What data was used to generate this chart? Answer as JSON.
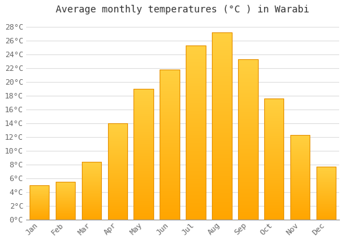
{
  "title": "Average monthly temperatures (°C ) in Warabi",
  "months": [
    "Jan",
    "Feb",
    "Mar",
    "Apr",
    "May",
    "Jun",
    "Jul",
    "Aug",
    "Sep",
    "Oct",
    "Nov",
    "Dec"
  ],
  "values": [
    5.0,
    5.5,
    8.4,
    14.0,
    19.0,
    21.8,
    25.3,
    27.2,
    23.3,
    17.6,
    12.3,
    7.7
  ],
  "bar_color_bottom": "#FFA500",
  "bar_color_top": "#FFD040",
  "bar_edge_color": "#E8960A",
  "background_color": "#ffffff",
  "plot_bg_color": "#ffffff",
  "grid_color": "#e0e0e0",
  "ytick_labels": [
    "0°C",
    "2°C",
    "4°C",
    "6°C",
    "8°C",
    "10°C",
    "12°C",
    "14°C",
    "16°C",
    "18°C",
    "20°C",
    "22°C",
    "24°C",
    "26°C",
    "28°C"
  ],
  "ytick_values": [
    0,
    2,
    4,
    6,
    8,
    10,
    12,
    14,
    16,
    18,
    20,
    22,
    24,
    26,
    28
  ],
  "ylim": [
    0,
    29
  ],
  "title_fontsize": 10,
  "tick_fontsize": 8,
  "font_family": "monospace",
  "text_color": "#666666"
}
